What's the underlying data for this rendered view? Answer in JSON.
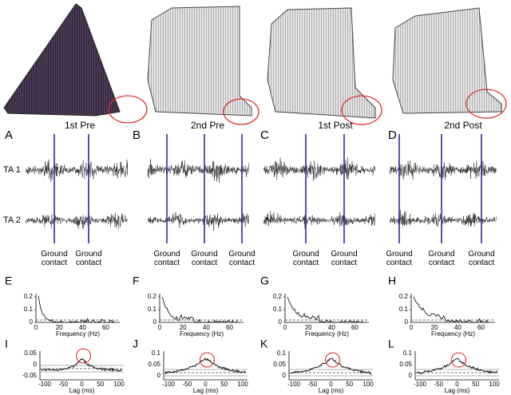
{
  "traces": [
    "TA 1",
    "TA 2"
  ],
  "columns": [
    {
      "letter": "A",
      "title": "1st Pre",
      "contacts": [
        "Ground contact",
        "Ground contact"
      ],
      "coh_letter": "E",
      "coh_yticks": [
        "0.2",
        "0.1",
        "0"
      ],
      "coh_xticks": [
        "0",
        "20",
        "40",
        "60"
      ],
      "coh_xlabel": "Frequency (Hz)",
      "xc_letter": "I",
      "xc_yticks": [
        "0.05",
        "0",
        "-0.05"
      ],
      "xc_xticks": [
        "-100",
        "-50",
        "0",
        "50",
        "100"
      ],
      "xc_xlabel": "Lag (ms)"
    },
    {
      "letter": "B",
      "title": "2nd Pre",
      "contacts": [
        "Ground contact",
        "Ground contact",
        "Ground contact"
      ],
      "coh_letter": "F",
      "coh_yticks": [
        "0.2",
        "0.1",
        "0"
      ],
      "coh_xticks": [
        "0",
        "20",
        "40",
        "60"
      ],
      "coh_xlabel": "Frequency (Hz)",
      "xc_letter": "J",
      "xc_yticks": [
        "0.1",
        "0.05",
        "0"
      ],
      "xc_xticks": [
        "-100",
        "-50",
        "0",
        "50",
        "100"
      ],
      "xc_xlabel": "Lag (ms)"
    },
    {
      "letter": "C",
      "title": "1st Post",
      "contacts": [
        "Ground contact",
        "Ground contact"
      ],
      "coh_letter": "G",
      "coh_yticks": [
        "0.2",
        "0.1",
        "0"
      ],
      "coh_xticks": [
        "0",
        "20",
        "40",
        "60"
      ],
      "coh_xlabel": "Frequency (Hz)",
      "xc_letter": "K",
      "xc_yticks": [
        "0.1",
        "0.05",
        "0"
      ],
      "xc_xticks": [
        "-100",
        "-50",
        "0",
        "50",
        "100"
      ],
      "xc_xlabel": "Lag (ms)"
    },
    {
      "letter": "D",
      "title": "2nd Post",
      "contacts": [
        "Ground contact",
        "Ground contact",
        "Ground contact"
      ],
      "coh_letter": "H",
      "coh_yticks": [
        "0.2",
        "0.1",
        "0"
      ],
      "coh_xticks": [
        "0",
        "20",
        "40",
        "60"
      ],
      "coh_xlabel": "Frequency (Hz)",
      "xc_letter": "L",
      "xc_yticks": [
        "0.1",
        "0.05",
        "0"
      ],
      "xc_xticks": [
        "-100",
        "-50",
        "0",
        "50",
        "100"
      ],
      "xc_xlabel": "Lag (ms)"
    }
  ]
}
